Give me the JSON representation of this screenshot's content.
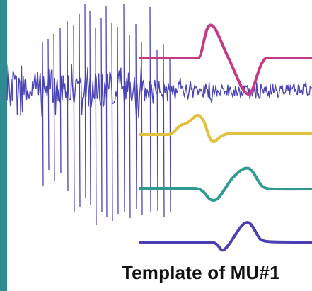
{
  "caption": "Template of MU#1",
  "colors": {
    "border": "#2f8a92",
    "raw_signal": "#4b45b5",
    "template_1": "#c43a86",
    "template_2": "#e2c13e",
    "template_3": "#2f9a92",
    "template_4": "#4a3fb3"
  },
  "icons": {
    "raw_emg": "emg-signal-trace",
    "templates": "motor-unit-waveforms"
  }
}
